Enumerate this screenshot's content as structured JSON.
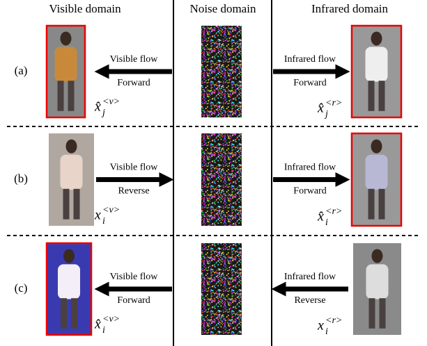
{
  "headers": [
    "Visible domain",
    "Noise domain",
    "Infrared domain"
  ],
  "rows": [
    {
      "label": "(a)",
      "left": {
        "flow": "Visible flow",
        "direction": "Forward",
        "symbol": "x̂",
        "sub": "j",
        "sup": "<v>"
      },
      "right": {
        "flow": "Infrared flow",
        "direction": "Forward",
        "symbol": "x̂",
        "sub": "j",
        "sup": "<r>"
      }
    },
    {
      "label": "(b)",
      "left": {
        "flow": "Visible flow",
        "direction": "Reverse",
        "symbol": "x",
        "sub": "i",
        "sup": "<v>"
      },
      "right": {
        "flow": "Infrared flow",
        "direction": "Forward",
        "symbol": "x̂",
        "sub": "i",
        "sup": "<r>"
      }
    },
    {
      "label": "(c)",
      "left": {
        "flow": "Visible flow",
        "direction": "Forward",
        "symbol": "x̂",
        "sub": "i",
        "sup": "<v>"
      },
      "right": {
        "flow": "Infrared flow",
        "direction": "Reverse",
        "symbol": "x",
        "sub": "i",
        "sup": "<r>"
      }
    }
  ]
}
